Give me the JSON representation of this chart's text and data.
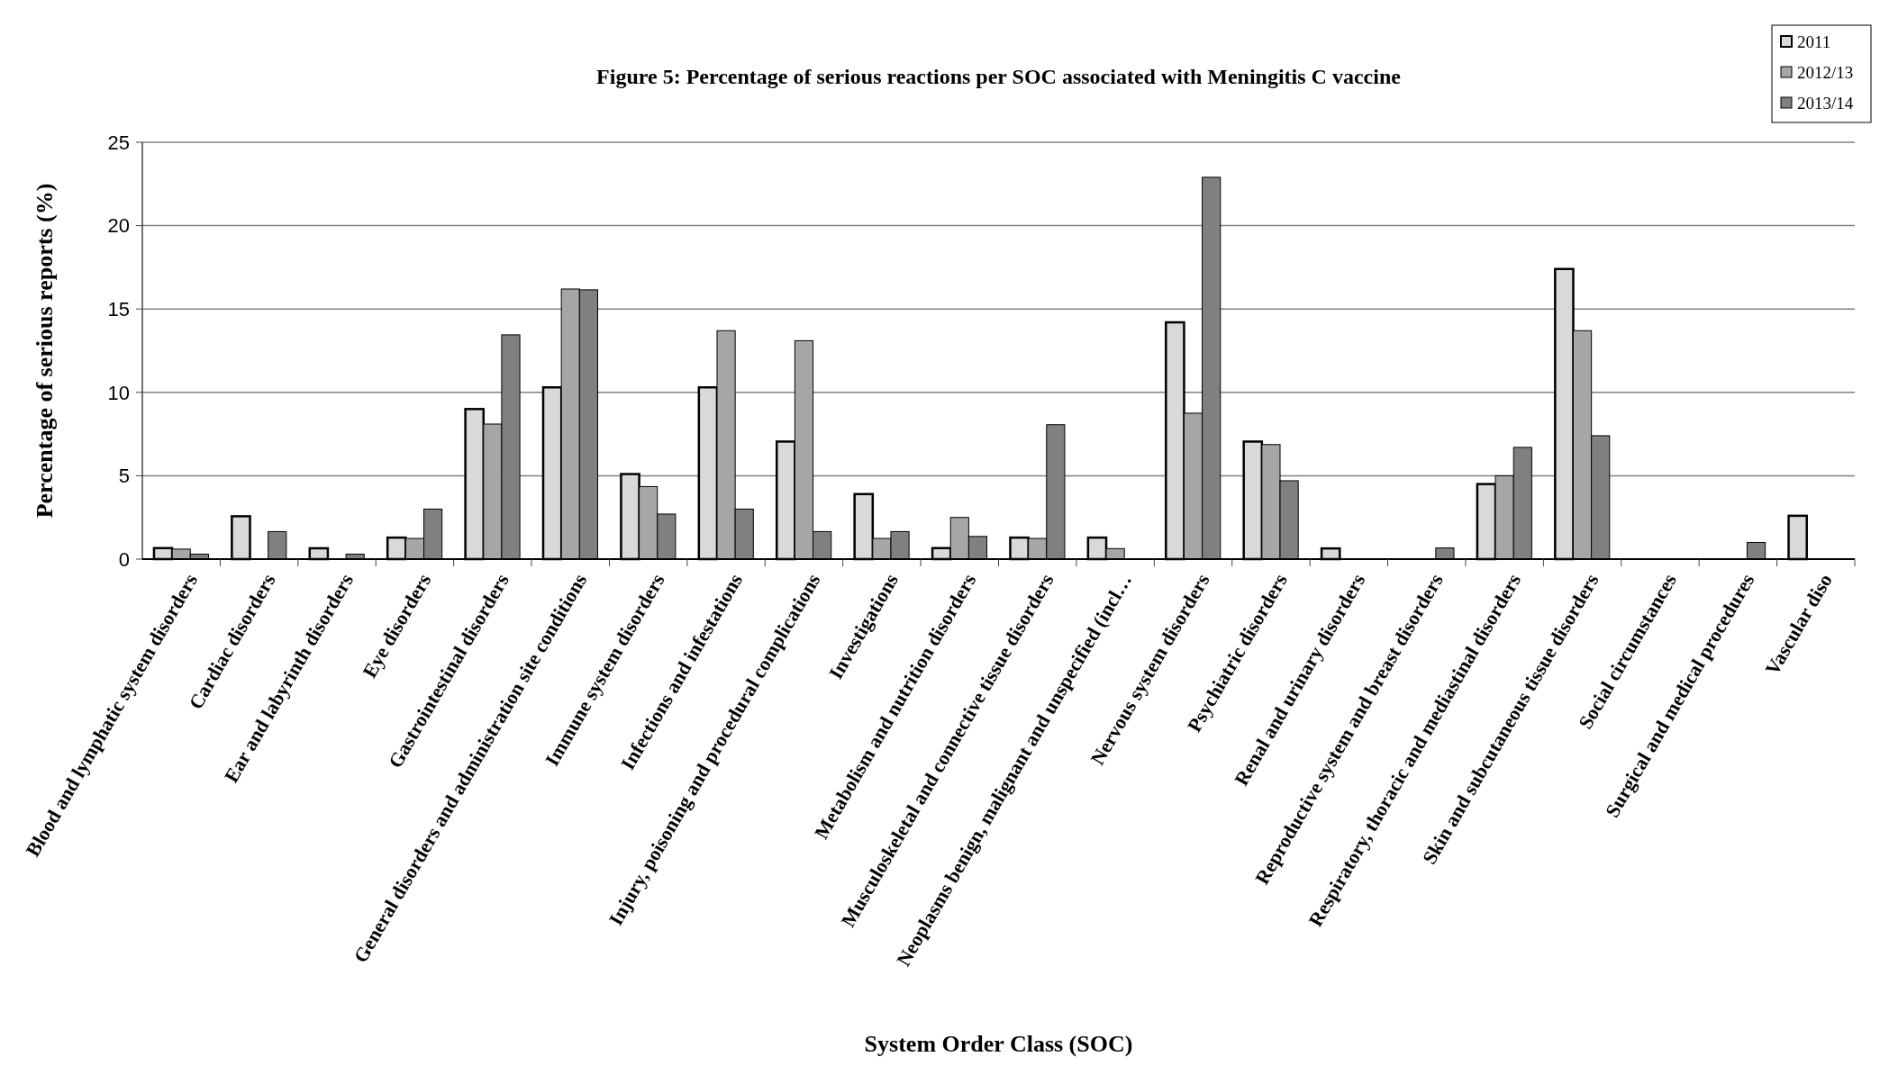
{
  "chart_data": {
    "type": "bar",
    "title": "Figure 5: Percentage of serious reactions per SOC associated with Meningitis C vaccine",
    "xlabel": "System Order Class (SOC)",
    "ylabel": "Percentage of serious reports (%)",
    "categories": [
      "Blood and lymphatic system disorders",
      "Cardiac disorders",
      "Ear and labyrinth disorders",
      "Eye disorders",
      "Gastrointestinal disorders",
      "General disorders and administration site conditions",
      "Immune system disorders",
      "Infections and infestations",
      "Injury, poisoning and procedural complications",
      "Investigations",
      "Metabolism and nutrition disorders",
      "Musculoskeletal and connective tissue disorders",
      "Neoplasms benign, malignant and unspecified (incl…",
      "Nervous system disorders",
      "Psychiatric disorders",
      "Renal and urinary disorders",
      "Reproductive system and breast disorders",
      "Respiratory, thoracic and mediastinal disorders",
      "Skin and subcutaneous tissue disorders",
      "Social circumstances",
      "Surgical and medical procedures",
      "Vascular diso"
    ],
    "series": [
      {
        "name": "2011",
        "color": "#d9d9d9",
        "values": [
          0.66,
          2.57,
          0.65,
          1.29,
          9.0,
          10.3,
          5.1,
          10.3,
          7.05,
          3.9,
          0.66,
          1.29,
          1.29,
          14.2,
          7.05,
          0.64,
          0,
          4.5,
          17.4,
          0,
          0,
          2.6
        ]
      },
      {
        "name": "2012/13",
        "color": "#a6a6a6",
        "values": [
          0.6,
          0,
          0,
          1.24,
          8.1,
          16.2,
          4.35,
          13.7,
          13.1,
          1.24,
          2.5,
          1.24,
          0.63,
          8.75,
          6.87,
          0,
          0,
          5.0,
          13.7,
          0,
          0,
          null
        ]
      },
      {
        "name": "2013/14",
        "color": "#808080",
        "values": [
          0.3,
          1.65,
          0.3,
          3.0,
          13.45,
          16.15,
          2.7,
          3.0,
          1.65,
          1.65,
          1.36,
          8.06,
          0,
          22.9,
          4.7,
          0,
          0.67,
          6.7,
          7.4,
          0,
          1.0,
          null
        ]
      }
    ],
    "ylim": [
      0,
      25
    ],
    "yticks": [
      0,
      5,
      10,
      15,
      20,
      25
    ],
    "grid": "y",
    "legend": "top right"
  }
}
